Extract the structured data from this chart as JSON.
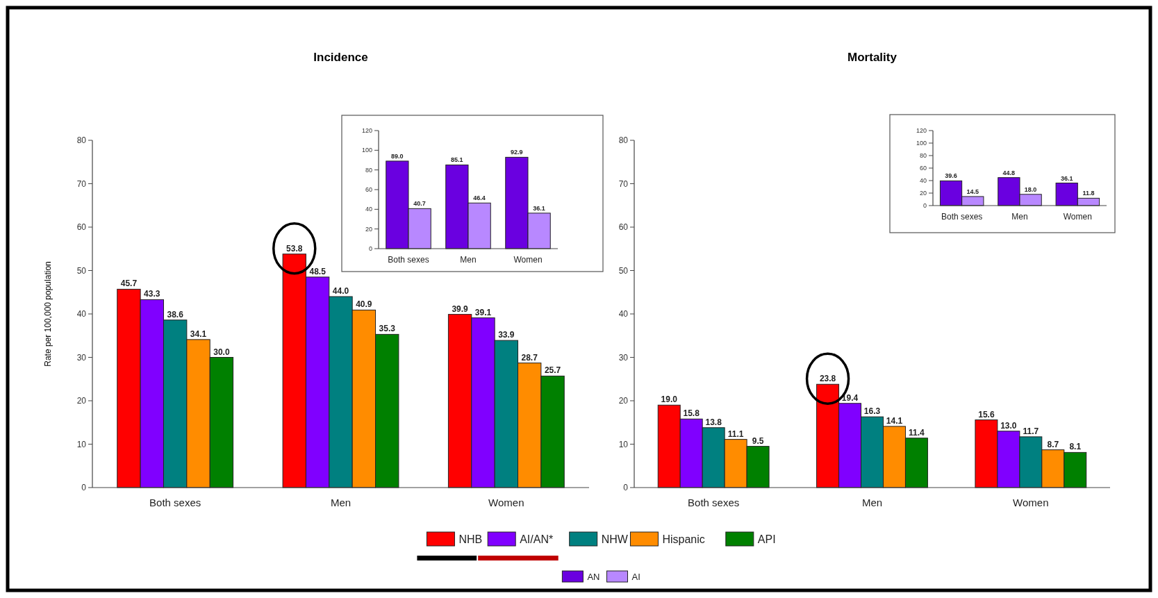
{
  "chart_data": [
    {
      "type": "bar",
      "title": "Incidence",
      "ylabel": "Rate per 100,000 population",
      "categories": [
        "Both sexes",
        "Men",
        "Women"
      ],
      "series": [
        {
          "name": "NHB",
          "color": "#ff0000",
          "values": [
            45.7,
            53.8,
            39.9
          ],
          "value_labels": [
            "45.7",
            "53.8",
            "39.9"
          ]
        },
        {
          "name": "AI/AN*",
          "color": "#8000ff",
          "values": [
            43.3,
            48.5,
            39.1
          ],
          "value_labels": [
            "43.3",
            "48.5",
            "39.1"
          ]
        },
        {
          "name": "NHW",
          "color": "#008080",
          "values": [
            38.6,
            44.0,
            33.9
          ],
          "value_labels": [
            "38.6",
            "44.0",
            "33.9"
          ]
        },
        {
          "name": "Hispanic",
          "color": "#ff8c00",
          "values": [
            34.1,
            40.9,
            28.7
          ],
          "value_labels": [
            "34.1",
            "40.9",
            "28.7"
          ]
        },
        {
          "name": "API",
          "color": "#008000",
          "values": [
            30.0,
            35.3,
            25.7
          ],
          "value_labels": [
            "30.0",
            "35.3",
            "25.7"
          ]
        }
      ],
      "ylim": [
        0,
        80
      ],
      "yticks": [
        0,
        10,
        20,
        30,
        40,
        50,
        60,
        70,
        80
      ],
      "legend": "bottom",
      "grid": false
    },
    {
      "type": "bar",
      "title": "Mortality",
      "categories": [
        "Both sexes",
        "Men",
        "Women"
      ],
      "series": [
        {
          "name": "NHB",
          "color": "#ff0000",
          "values": [
            19.0,
            23.8,
            15.6
          ],
          "value_labels": [
            "19.0",
            "23.8",
            "15.6"
          ]
        },
        {
          "name": "AI/AN*",
          "color": "#8000ff",
          "values": [
            15.8,
            19.4,
            13.0
          ],
          "value_labels": [
            "15.8",
            "19.4",
            "13.0"
          ]
        },
        {
          "name": "NHW",
          "color": "#008080",
          "values": [
            13.8,
            16.3,
            11.7
          ],
          "value_labels": [
            "13.8",
            "16.3",
            "11.7"
          ]
        },
        {
          "name": "Hispanic",
          "color": "#ff8c00",
          "values": [
            11.1,
            14.1,
            8.7
          ],
          "value_labels": [
            "11.1",
            "14.1",
            "8.7"
          ]
        },
        {
          "name": "API",
          "color": "#008000",
          "values": [
            9.5,
            11.4,
            8.1
          ],
          "value_labels": [
            "9.5",
            "11.4",
            "8.1"
          ]
        }
      ],
      "ylim": [
        0,
        80
      ],
      "yticks": [
        0,
        10,
        20,
        30,
        40,
        50,
        60,
        70,
        80
      ],
      "legend": "bottom",
      "grid": false
    },
    {
      "type": "bar",
      "categories": [
        "Both sexes",
        "Men",
        "Women"
      ],
      "series": [
        {
          "name": "AN",
          "color": "#6a00e0",
          "values": [
            89.0,
            85.1,
            92.9
          ],
          "value_labels": [
            "89.0",
            "85.1",
            "92.9"
          ]
        },
        {
          "name": "AI",
          "color": "#b888ff",
          "values": [
            40.7,
            46.4,
            36.1
          ],
          "value_labels": [
            "40.7",
            "46.4",
            "36.1"
          ]
        }
      ],
      "ylim": [
        0,
        120
      ],
      "yticks": [
        0,
        20,
        40,
        60,
        80,
        100,
        120
      ],
      "legend": "bottom",
      "grid": false
    },
    {
      "type": "bar",
      "categories": [
        "Both sexes",
        "Men",
        "Women"
      ],
      "series": [
        {
          "name": "AN",
          "color": "#6a00e0",
          "values": [
            39.6,
            44.8,
            36.1
          ],
          "value_labels": [
            "39.6",
            "44.8",
            "36.1"
          ]
        },
        {
          "name": "AI",
          "color": "#b888ff",
          "values": [
            14.5,
            18.0,
            11.8
          ],
          "value_labels": [
            "14.5",
            "18.0",
            "11.8"
          ]
        }
      ],
      "ylim": [
        0,
        120
      ],
      "yticks": [
        0,
        20,
        40,
        60,
        80,
        100,
        120
      ],
      "legend": "bottom",
      "grid": false
    }
  ]
}
